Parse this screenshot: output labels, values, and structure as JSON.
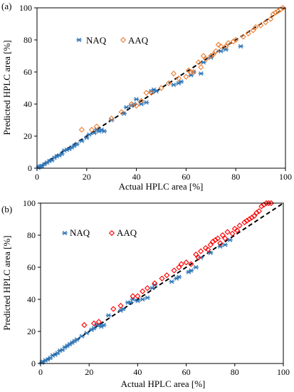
{
  "chart_data": [
    {
      "type": "scatter",
      "panel_label": "(a)",
      "xlabel": "Actual HPLC area [%]",
      "ylabel": "Predicted HPLC area [%]",
      "xlim": [
        0,
        100
      ],
      "ylim": [
        0,
        100
      ],
      "x_ticks": [
        "0",
        "20",
        "40",
        "60",
        "80",
        "100"
      ],
      "y_ticks": [
        "0",
        "20",
        "40",
        "60",
        "80",
        "100"
      ],
      "grid": false,
      "legend_placement": "upper-left",
      "reference_line": "y = x (dashed)",
      "series": [
        {
          "name": "NAQ",
          "marker": "asterisk",
          "color": "#2e75b6",
          "points": [
            [
              0.5,
              0.3
            ],
            [
              1,
              0.8
            ],
            [
              1.5,
              1.2
            ],
            [
              2,
              1.5
            ],
            [
              3,
              2.5
            ],
            [
              4,
              3.5
            ],
            [
              5,
              4.5
            ],
            [
              6,
              5
            ],
            [
              7,
              6.5
            ],
            [
              8,
              7.5
            ],
            [
              9,
              8
            ],
            [
              10,
              9
            ],
            [
              11,
              11
            ],
            [
              12,
              11.5
            ],
            [
              13,
              12
            ],
            [
              14,
              13
            ],
            [
              15,
              14
            ],
            [
              16,
              15
            ],
            [
              18,
              17
            ],
            [
              20,
              19
            ],
            [
              21,
              21
            ],
            [
              23,
              22
            ],
            [
              24,
              24
            ],
            [
              25,
              23
            ],
            [
              26,
              24
            ],
            [
              27,
              23
            ],
            [
              30,
              30
            ],
            [
              35,
              34
            ],
            [
              36,
              38
            ],
            [
              38,
              39
            ],
            [
              39,
              40
            ],
            [
              40,
              43
            ],
            [
              42,
              40
            ],
            [
              44,
              41
            ],
            [
              46,
              48
            ],
            [
              47,
              49
            ],
            [
              48,
              48
            ],
            [
              55,
              52
            ],
            [
              57,
              53
            ],
            [
              58,
              54
            ],
            [
              62,
              58
            ],
            [
              63,
              60
            ],
            [
              66,
              59
            ],
            [
              67,
              66
            ],
            [
              70,
              69
            ],
            [
              74,
              73
            ],
            [
              76,
              74
            ],
            [
              82,
              76
            ]
          ]
        },
        {
          "name": "AAQ",
          "marker": "diamond",
          "color": "#ed7d31",
          "points": [
            [
              18,
              24
            ],
            [
              22,
              24
            ],
            [
              24,
              26
            ],
            [
              30,
              31
            ],
            [
              34,
              35
            ],
            [
              38,
              40
            ],
            [
              40,
              39
            ],
            [
              42,
              42
            ],
            [
              44,
              47
            ],
            [
              46,
              47
            ],
            [
              50,
              50
            ],
            [
              53,
              53
            ],
            [
              55,
              59
            ],
            [
              57,
              56
            ],
            [
              60,
              57
            ],
            [
              61,
              61
            ],
            [
              62,
              60
            ],
            [
              63,
              60
            ],
            [
              65,
              66
            ],
            [
              66,
              63
            ],
            [
              67,
              70
            ],
            [
              68,
              68
            ],
            [
              70,
              70
            ],
            [
              71,
              71
            ],
            [
              72,
              73
            ],
            [
              73,
              77
            ],
            [
              74,
              76
            ],
            [
              76,
              76
            ],
            [
              77,
              78
            ],
            [
              79,
              79
            ],
            [
              80,
              80
            ],
            [
              83,
              82
            ],
            [
              85,
              84
            ],
            [
              87,
              86
            ],
            [
              88,
              88
            ],
            [
              90,
              89
            ],
            [
              92,
              91
            ],
            [
              94,
              93
            ],
            [
              95,
              96
            ],
            [
              96,
              97
            ],
            [
              97,
              98
            ],
            [
              98,
              99
            ],
            [
              99,
              100
            ]
          ]
        }
      ]
    },
    {
      "type": "scatter",
      "panel_label": "(b)",
      "xlabel": "Actual HPLC area [%]",
      "ylabel": "Predicted HPLC area [%]",
      "xlim": [
        0,
        100
      ],
      "ylim": [
        0,
        100
      ],
      "x_ticks": [
        "0",
        "20",
        "40",
        "60",
        "80",
        "100"
      ],
      "y_ticks": [
        "0",
        "20",
        "40",
        "60",
        "80",
        "100"
      ],
      "grid": false,
      "legend_placement": "upper-left",
      "reference_line": "y = x (dashed)",
      "series": [
        {
          "name": "NAQ",
          "marker": "asterisk",
          "color": "#2e75b6",
          "points": [
            [
              0.5,
              0.5
            ],
            [
              1,
              1
            ],
            [
              2,
              2
            ],
            [
              3,
              2.5
            ],
            [
              4,
              3.5
            ],
            [
              5,
              5
            ],
            [
              6,
              5.5
            ],
            [
              7,
              6.5
            ],
            [
              8,
              8
            ],
            [
              9,
              8.5
            ],
            [
              10,
              10
            ],
            [
              11,
              11
            ],
            [
              12,
              12
            ],
            [
              13,
              13
            ],
            [
              14,
              14
            ],
            [
              15,
              15
            ],
            [
              17,
              17
            ],
            [
              19,
              19
            ],
            [
              21,
              21
            ],
            [
              22,
              22
            ],
            [
              23,
              24
            ],
            [
              24,
              24
            ],
            [
              25,
              23
            ],
            [
              26,
              24
            ],
            [
              28,
              30
            ],
            [
              33,
              33
            ],
            [
              34,
              34
            ],
            [
              36,
              38
            ],
            [
              37,
              38
            ],
            [
              38,
              40
            ],
            [
              40,
              39
            ],
            [
              42,
              40
            ],
            [
              44,
              41
            ],
            [
              46,
              47
            ],
            [
              47,
              49
            ],
            [
              54,
              51
            ],
            [
              56,
              53
            ],
            [
              57,
              54
            ],
            [
              61,
              57
            ],
            [
              62,
              58
            ],
            [
              64,
              60
            ],
            [
              66,
              66
            ],
            [
              70,
              69
            ],
            [
              74,
              73
            ],
            [
              76,
              74
            ],
            [
              78,
              77
            ]
          ]
        },
        {
          "name": "AAQ",
          "marker": "diamond",
          "color": "#ff0000",
          "points": [
            [
              18,
              24
            ],
            [
              22,
              25
            ],
            [
              24,
              26
            ],
            [
              30,
              34
            ],
            [
              33,
              36
            ],
            [
              38,
              42
            ],
            [
              40,
              42
            ],
            [
              42,
              45
            ],
            [
              44,
              47
            ],
            [
              47,
              50
            ],
            [
              50,
              53
            ],
            [
              52,
              55
            ],
            [
              55,
              58
            ],
            [
              57,
              60
            ],
            [
              58,
              62
            ],
            [
              60,
              63
            ],
            [
              62,
              62
            ],
            [
              64,
              68
            ],
            [
              65,
              66
            ],
            [
              66,
              70
            ],
            [
              68,
              72
            ],
            [
              69,
              71
            ],
            [
              70,
              74
            ],
            [
              71,
              76
            ],
            [
              72,
              77
            ],
            [
              73,
              78
            ],
            [
              74,
              75
            ],
            [
              75,
              80
            ],
            [
              76,
              78
            ],
            [
              77,
              82
            ],
            [
              79,
              81
            ],
            [
              80,
              84
            ],
            [
              81,
              83
            ],
            [
              82,
              86
            ],
            [
              84,
              88
            ],
            [
              85,
              89
            ],
            [
              86,
              90
            ],
            [
              87,
              91
            ],
            [
              88,
              92
            ],
            [
              89,
              94
            ],
            [
              90,
              95
            ],
            [
              91,
              98
            ],
            [
              92,
              99
            ],
            [
              93,
              100
            ],
            [
              94,
              100
            ],
            [
              95,
              100
            ]
          ]
        }
      ]
    }
  ]
}
